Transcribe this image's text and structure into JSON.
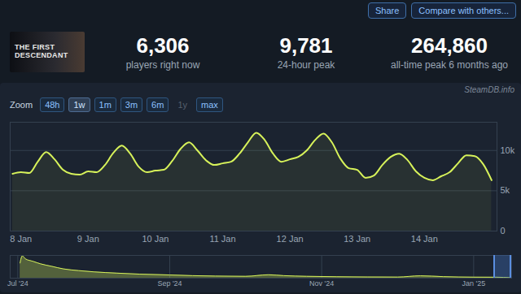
{
  "header": {
    "buttons": [
      "Share",
      "Compare with others..."
    ],
    "game": "THE FIRST DESCENDANT",
    "watermark": "SteamDB.info"
  },
  "stats": [
    {
      "value": "6,306",
      "label": "players right now"
    },
    {
      "value": "9,781",
      "label": "24-hour peak"
    },
    {
      "value": "264,860",
      "label": "all-time peak 6 months ago"
    }
  ],
  "zoom": {
    "label": "Zoom",
    "options": [
      "48h",
      "1w",
      "1m",
      "3m",
      "6m",
      "1y",
      "max"
    ],
    "active": "1w",
    "disabled": [
      "1y"
    ]
  },
  "chart_data": [
    {
      "type": "area",
      "color": "#d7f25a",
      "x": [
        7.875,
        8,
        8.125,
        8.25,
        8.375,
        8.5,
        8.625,
        8.75,
        8.875,
        9,
        9.125,
        9.25,
        9.375,
        9.5,
        9.625,
        9.75,
        9.875,
        10,
        10.125,
        10.25,
        10.375,
        10.5,
        10.625,
        10.75,
        10.875,
        11,
        11.125,
        11.25,
        11.375,
        11.5,
        11.625,
        11.75,
        11.875,
        12,
        12.125,
        12.25,
        12.375,
        12.5,
        12.625,
        12.75,
        12.875,
        13,
        13.125,
        13.25,
        13.375,
        13.5,
        13.625,
        13.75,
        13.875,
        14,
        14.125,
        14.25,
        14.375,
        14.5,
        14.625,
        14.75,
        14.875,
        15
      ],
      "values": [
        7100,
        7300,
        7200,
        8600,
        9800,
        8900,
        7600,
        7100,
        7000,
        7400,
        7300,
        8200,
        9700,
        10600,
        9600,
        8000,
        7300,
        7500,
        7600,
        8700,
        10200,
        11000,
        10000,
        8800,
        8200,
        8400,
        8600,
        9600,
        11000,
        12200,
        11300,
        9600,
        8600,
        8900,
        9200,
        10000,
        11300,
        12100,
        11000,
        9000,
        7800,
        7600,
        6600,
        6900,
        8200,
        9200,
        9600,
        8800,
        7400,
        6600,
        6300,
        6800,
        7300,
        8400,
        9400,
        9300,
        8300,
        6306
      ],
      "xlim": [
        7.84,
        15.08
      ],
      "xticks": [
        {
          "value": 8,
          "label": "8 Jan"
        },
        {
          "value": 9,
          "label": "9 Jan"
        },
        {
          "value": 10,
          "label": "10 Jan"
        },
        {
          "value": 11,
          "label": "11 Jan"
        },
        {
          "value": 12,
          "label": "12 Jan"
        },
        {
          "value": 13,
          "label": "13 Jan"
        },
        {
          "value": 14,
          "label": "14 Jan"
        }
      ],
      "ylim": [
        0,
        13500
      ],
      "yticks": [
        0,
        {
          "value": 5000,
          "label": "5k"
        },
        {
          "value": 10000,
          "label": "10k"
        }
      ],
      "grid": true
    },
    {
      "type": "area",
      "color": "#d7f25a",
      "x": [
        7.03,
        7.06,
        7.1,
        7.2,
        7.3,
        7.45,
        7.6,
        7.8,
        8.0,
        8.3,
        8.6,
        9.0,
        9.3,
        9.6,
        10.0,
        10.3,
        10.5,
        10.8,
        11.2,
        11.6,
        12.0,
        12.3,
        12.6,
        13.0,
        13.3,
        13.48
      ],
      "values": [
        180000,
        264860,
        230000,
        200000,
        170000,
        140000,
        110000,
        90000,
        75000,
        60000,
        48000,
        38000,
        30000,
        25000,
        22000,
        40000,
        30000,
        22000,
        17000,
        14000,
        13000,
        28000,
        18000,
        12000,
        11000,
        6306
      ],
      "xlim": [
        6.9,
        13.5
      ],
      "xticks": [
        {
          "value": 7,
          "label": "Jul '24"
        },
        {
          "value": 9,
          "label": "Sep '24"
        },
        {
          "value": 11,
          "label": "Nov '24"
        },
        {
          "value": 13,
          "label": "Jan '25"
        }
      ],
      "ylim": [
        0,
        270000
      ],
      "tick_labels": "x",
      "grid": true
    }
  ]
}
